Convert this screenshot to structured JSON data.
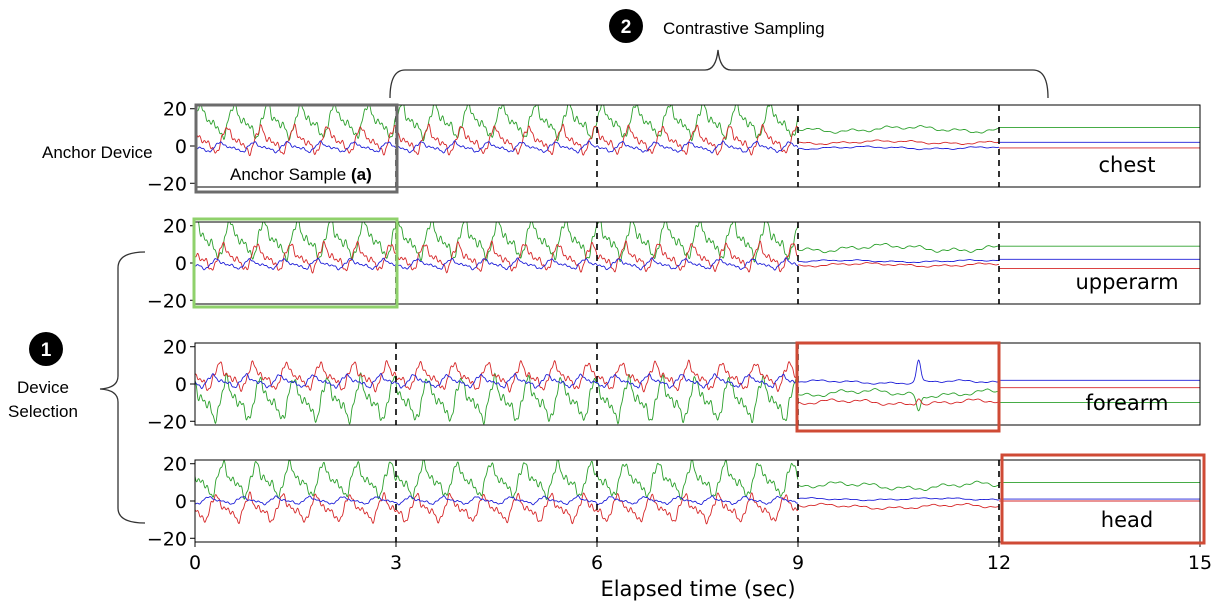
{
  "chart_data": {
    "type": "line",
    "xlabel": "Elapsed time (sec)",
    "xlim": [
      0,
      15
    ],
    "ylim": [
      -22,
      22
    ],
    "xticks": [
      0,
      3,
      6,
      9,
      12,
      15
    ],
    "yticks": [
      20,
      0,
      -20
    ],
    "ytick_labels": [
      "20",
      "0",
      "−20"
    ],
    "segment_boundaries": [
      3,
      6,
      9,
      12
    ],
    "series_colors": [
      "#2ca02c",
      "#d62728",
      "#1f1fd8"
    ],
    "panels": [
      {
        "label": "chest",
        "regimes": [
          {
            "from": 0,
            "to": 9,
            "kind": "active",
            "levels": [
              12,
              2,
              -1
            ],
            "amps": [
              8,
              7,
              4
            ],
            "period": 0.5,
            "phase": 0.0
          },
          {
            "from": 9,
            "to": 12,
            "kind": "calm",
            "levels": [
              9,
              2,
              -1
            ],
            "amps": [
              2.5,
              1.5,
              1.2
            ]
          },
          {
            "from": 12,
            "to": 15,
            "kind": "flat",
            "levels": [
              10,
              -1,
              2
            ]
          }
        ]
      },
      {
        "label": "upperarm",
        "regimes": [
          {
            "from": 0,
            "to": 9,
            "kind": "active",
            "levels": [
              11,
              2,
              -1
            ],
            "amps": [
              9,
              7,
              4
            ],
            "period": 0.5,
            "phase": 0.7
          },
          {
            "from": 9,
            "to": 12,
            "kind": "calm",
            "levels": [
              8,
              -1,
              1
            ],
            "amps": [
              3,
              1.5,
              1
            ]
          },
          {
            "from": 12,
            "to": 15,
            "kind": "flat",
            "levels": [
              9,
              -3,
              2
            ]
          }
        ]
      },
      {
        "label": "forearm",
        "regimes": [
          {
            "from": 0,
            "to": 9,
            "kind": "active",
            "levels": [
              -10,
              3,
              1
            ],
            "amps": [
              10,
              7,
              5
            ],
            "period": 0.5,
            "phase": 1.4
          },
          {
            "from": 9,
            "to": 12,
            "kind": "calm",
            "levels": [
              -5,
              -10,
              1
            ],
            "amps": [
              3,
              2.5,
              1.5
            ],
            "spike": 10.8
          },
          {
            "from": 12,
            "to": 15,
            "kind": "flat",
            "levels": [
              -10,
              -2,
              2
            ]
          }
        ]
      },
      {
        "label": "head",
        "regimes": [
          {
            "from": 0,
            "to": 9,
            "kind": "active",
            "levels": [
              10,
              -5,
              0
            ],
            "amps": [
              8,
              7,
              3
            ],
            "period": 0.5,
            "phase": 2.1
          },
          {
            "from": 9,
            "to": 12,
            "kind": "calm",
            "levels": [
              8,
              -3,
              1
            ],
            "amps": [
              3,
              2,
              1
            ]
          },
          {
            "from": 12,
            "to": 15,
            "kind": "flat",
            "levels": [
              10,
              0,
              1
            ]
          }
        ]
      }
    ]
  },
  "annotations": {
    "contrastive_badge": "2",
    "contrastive_label": "Contrastive Sampling",
    "device_badge": "1",
    "device_label_line1": "Device",
    "device_label_line2": "Selection",
    "anchor_device_label": "Anchor Device",
    "anchor_sample_label": "Anchor Sample ",
    "anchor_sample_mark": "(a)"
  },
  "highlight_colors": {
    "anchor_sample": "#6b6b6b",
    "positive": "#8fd16b",
    "negative": "#cf4a35"
  }
}
